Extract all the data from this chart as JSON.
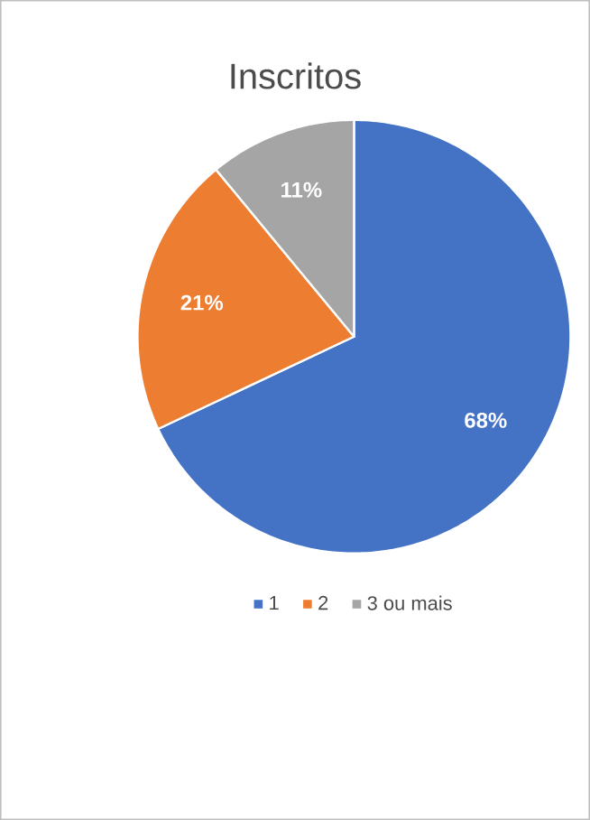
{
  "chart_data": {
    "type": "pie",
    "title": "Inscritos",
    "categories": [
      "1",
      "2",
      "3 ou mais"
    ],
    "values": [
      68,
      21,
      11
    ],
    "colors": [
      "#4472c4",
      "#ed7d31",
      "#a5a5a5"
    ],
    "value_labels": [
      "68%",
      "21%",
      "11%"
    ],
    "legend": "bottom"
  }
}
